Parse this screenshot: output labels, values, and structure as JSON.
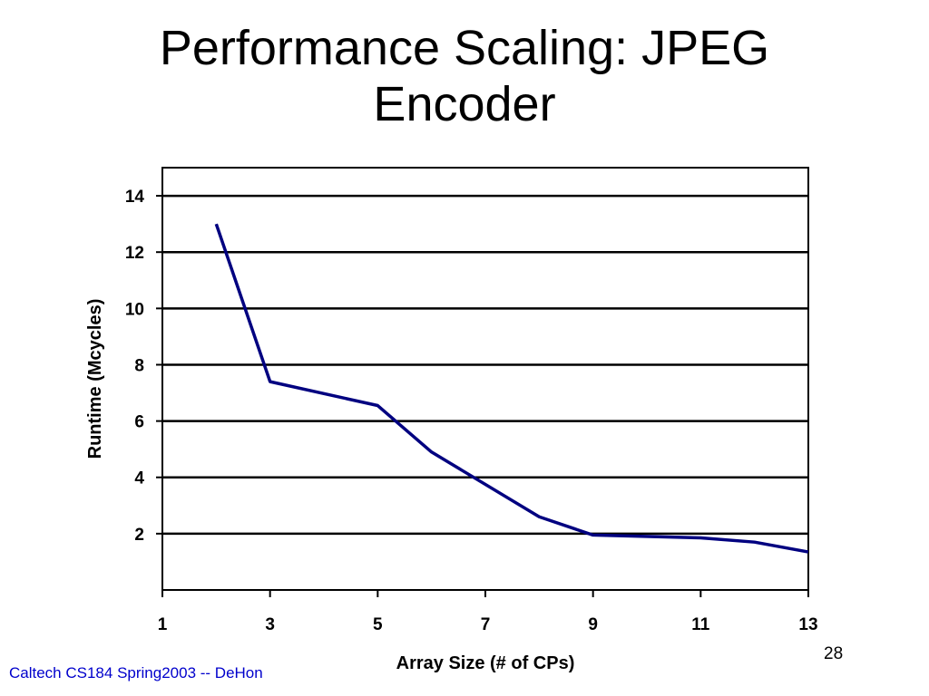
{
  "slide": {
    "title_line1": "Performance Scaling:  JPEG",
    "title_line2": "Encoder",
    "footer": "Caltech CS184 Spring2003 -- DeHon",
    "page_number": "28"
  },
  "chart_data": {
    "type": "line",
    "xlabel": "Array Size (# of CPs)",
    "ylabel": "Runtime (Mcycles)",
    "x": [
      2,
      3,
      5,
      6,
      8,
      9,
      11,
      12,
      13
    ],
    "series": [
      {
        "values": [
          13.0,
          7.4,
          6.55,
          4.9,
          2.6,
          1.95,
          1.85,
          1.7,
          1.35
        ],
        "color": "#000080"
      }
    ],
    "xlim": [
      1,
      13
    ],
    "ylim": [
      0,
      15
    ],
    "xticks": [
      1,
      3,
      5,
      7,
      9,
      11,
      13
    ],
    "yticks": [
      2,
      4,
      6,
      8,
      10,
      12,
      14
    ],
    "grid": "horizontal",
    "legend": "none"
  }
}
